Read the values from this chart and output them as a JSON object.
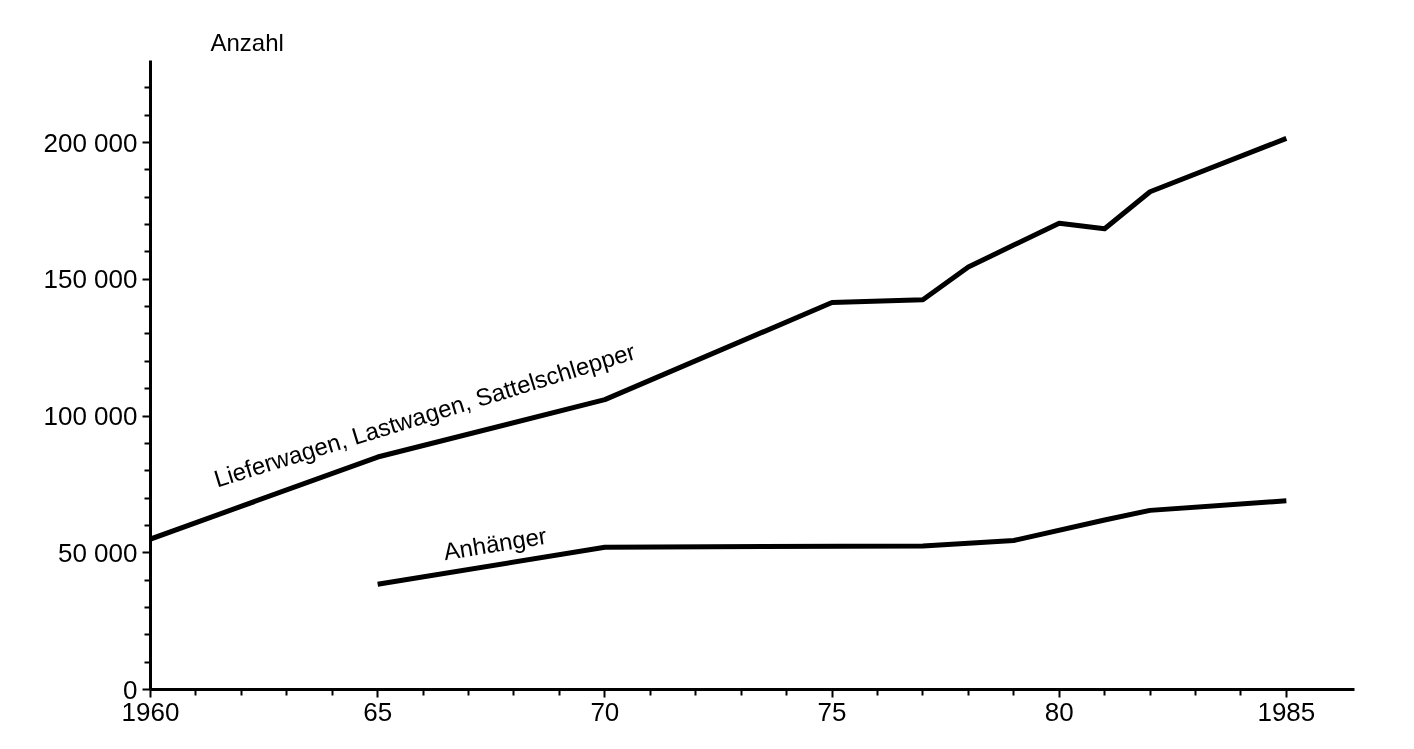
{
  "chart_data": {
    "type": "line",
    "ylabel": "Anzahl",
    "xlim": [
      1960,
      1986.5
    ],
    "ylim": [
      0,
      230000
    ],
    "xticks": [
      {
        "value": 1960,
        "label": "1960"
      },
      {
        "value": 1961,
        "label": null
      },
      {
        "value": 1962,
        "label": null
      },
      {
        "value": 1963,
        "label": null
      },
      {
        "value": 1964,
        "label": null
      },
      {
        "value": 1965,
        "label": "65"
      },
      {
        "value": 1966,
        "label": null
      },
      {
        "value": 1967,
        "label": null
      },
      {
        "value": 1968,
        "label": null
      },
      {
        "value": 1969,
        "label": null
      },
      {
        "value": 1970,
        "label": "70"
      },
      {
        "value": 1971,
        "label": null
      },
      {
        "value": 1972,
        "label": null
      },
      {
        "value": 1973,
        "label": null
      },
      {
        "value": 1974,
        "label": null
      },
      {
        "value": 1975,
        "label": "75"
      },
      {
        "value": 1976,
        "label": null
      },
      {
        "value": 1977,
        "label": null
      },
      {
        "value": 1978,
        "label": null
      },
      {
        "value": 1979,
        "label": null
      },
      {
        "value": 1980,
        "label": "80"
      },
      {
        "value": 1981,
        "label": null
      },
      {
        "value": 1982,
        "label": null
      },
      {
        "value": 1983,
        "label": null
      },
      {
        "value": 1984,
        "label": null
      },
      {
        "value": 1985,
        "label": "1985"
      }
    ],
    "yticks": [
      0,
      {
        "value": 10000,
        "label": null
      },
      {
        "value": 20000,
        "label": null
      },
      {
        "value": 30000,
        "label": null
      },
      {
        "value": 40000,
        "label": null
      },
      {
        "value": 50000,
        "label": "50 000"
      },
      {
        "value": 60000,
        "label": null
      },
      {
        "value": 70000,
        "label": null
      },
      {
        "value": 80000,
        "label": null
      },
      {
        "value": 90000,
        "label": null
      },
      {
        "value": 100000,
        "label": "100 000"
      },
      {
        "value": 110000,
        "label": null
      },
      {
        "value": 120000,
        "label": null
      },
      {
        "value": 130000,
        "label": null
      },
      {
        "value": 140000,
        "label": null
      },
      {
        "value": 150000,
        "label": "150 000"
      },
      {
        "value": 160000,
        "label": null
      },
      {
        "value": 170000,
        "label": null
      },
      {
        "value": 180000,
        "label": null
      },
      {
        "value": 190000,
        "label": null
      },
      {
        "value": 200000,
        "label": "200 000"
      },
      {
        "value": 210000,
        "label": null
      },
      {
        "value": 220000,
        "label": null
      }
    ],
    "grid": false,
    "legend": false,
    "marker": "none",
    "line_style": "solid",
    "series": [
      {
        "name": "Lieferwagen, Lastwagen, Sattelschlepper",
        "color": "#000000",
        "x": [
          1960,
          1965,
          1970,
          1975,
          1977,
          1978,
          1979,
          1980,
          1981,
          1982,
          1985
        ],
        "values": [
          55000,
          85000,
          106000,
          141500,
          142500,
          154500,
          162500,
          170500,
          168500,
          182000,
          201500
        ]
      },
      {
        "name": "Anhänger",
        "color": "#000000",
        "x": [
          1965,
          1970,
          1977,
          1979,
          1981,
          1982,
          1985
        ],
        "values": [
          38500,
          52000,
          52500,
          54500,
          62000,
          65500,
          69000
        ]
      }
    ]
  }
}
